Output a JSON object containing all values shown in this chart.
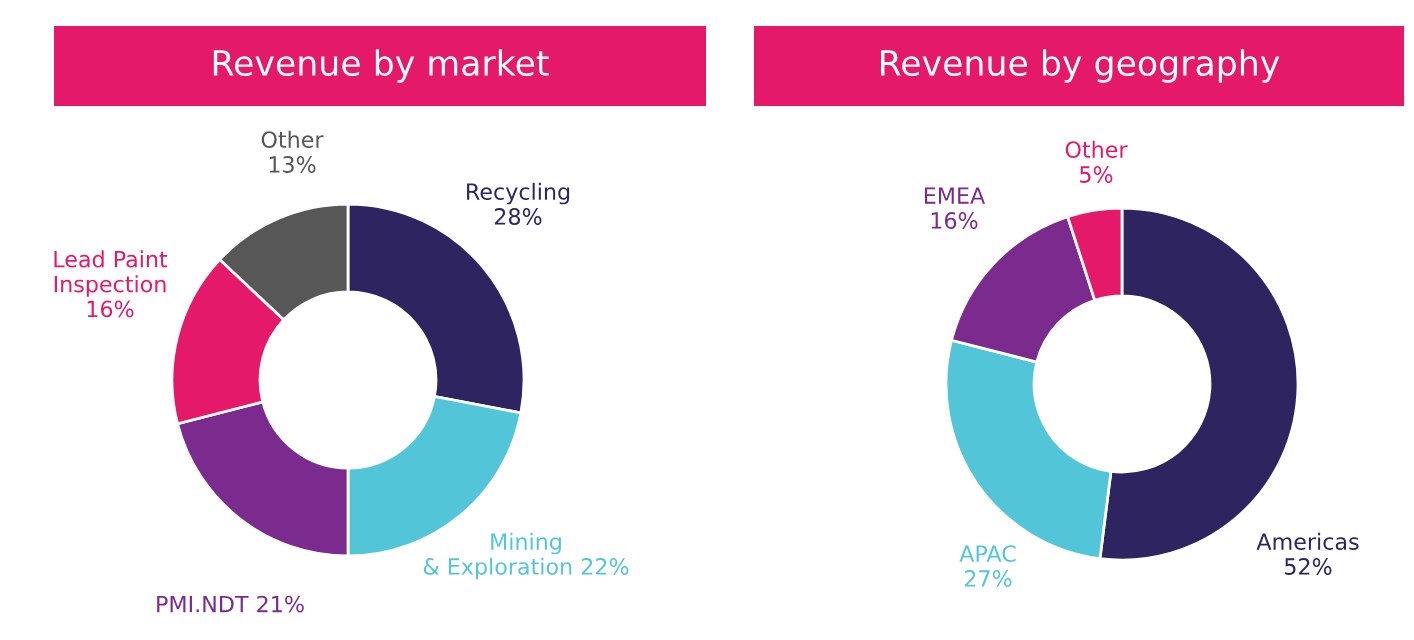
{
  "chart_data": [
    {
      "type": "donut",
      "title": "Revenue by market",
      "categories": [
        "Recycling",
        "Mining & Exploration",
        "PMI.NDT",
        "Lead Paint Inspection",
        "Other"
      ],
      "values": [
        28,
        22,
        21,
        16,
        13
      ],
      "value_labels": [
        "28%",
        "22%",
        "21%",
        "16%",
        "13%"
      ],
      "colors": [
        "#2e2560",
        "#52c5d8",
        "#7b2a8e",
        "#e5196a",
        "#575757"
      ]
    },
    {
      "type": "donut",
      "title": "Revenue by geography",
      "categories": [
        "Americas",
        "APAC",
        "EMEA",
        "Other"
      ],
      "values": [
        52,
        27,
        16,
        5
      ],
      "value_labels": [
        "52%",
        "27%",
        "16%",
        "5%"
      ],
      "colors": [
        "#2e2560",
        "#52c5d8",
        "#7b2a8e",
        "#e5196a"
      ]
    }
  ]
}
